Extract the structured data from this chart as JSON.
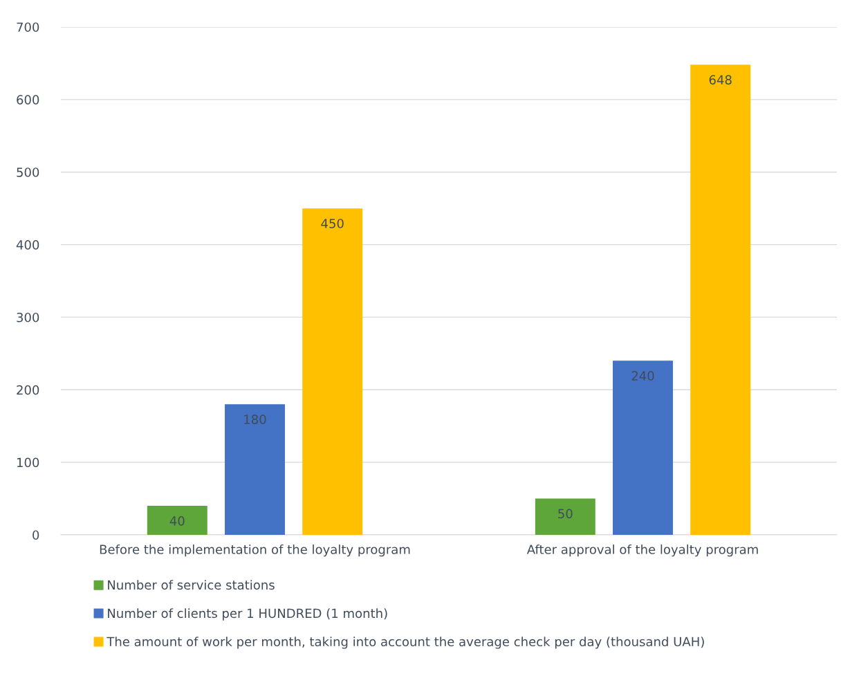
{
  "chart_data": {
    "type": "bar",
    "categories": [
      "Before the implementation of the loyalty program",
      "After approval of the loyalty program"
    ],
    "series": [
      {
        "name": "Number of service stations",
        "color": "#5ea63a",
        "values": [
          40,
          50
        ]
      },
      {
        "name": "Number of clients per 1 HUNDRED (1 month)",
        "color": "#4472c4",
        "values": [
          180,
          240
        ]
      },
      {
        "name": "The amount of work per month, taking into account the average check per day (thousand UAH)",
        "color": "#ffc000",
        "values": [
          450,
          648
        ]
      }
    ],
    "ylim": [
      0,
      700
    ],
    "yticks": [
      0,
      100,
      200,
      300,
      400,
      500,
      600,
      700
    ],
    "grid": "y",
    "legend": "bottom",
    "data_labels": true
  }
}
